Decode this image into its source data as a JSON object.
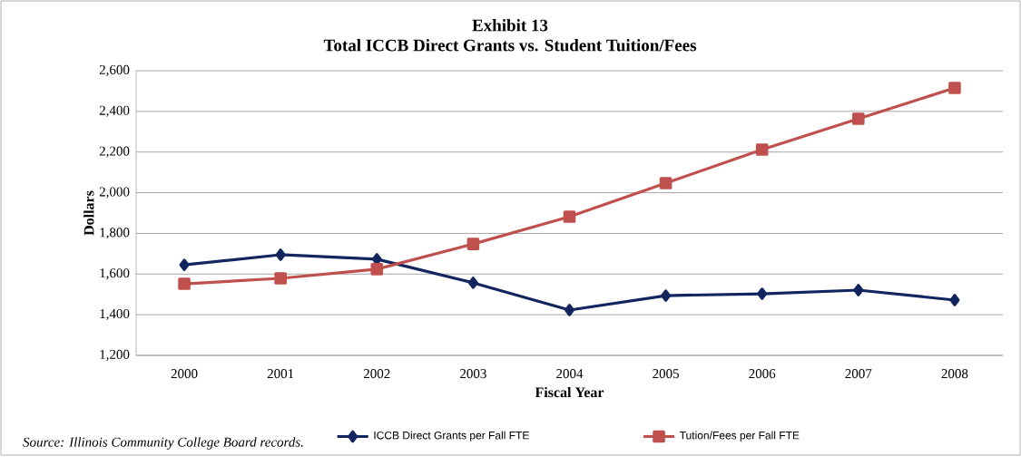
{
  "chart_data": {
    "type": "line",
    "title": "Exhibit 13",
    "subtitle": "Total ICCB Direct Grants vs. Student Tuition/Fees",
    "xlabel": "Fiscal Year",
    "ylabel": "Dollars",
    "categories": [
      "2000",
      "2001",
      "2002",
      "2003",
      "2004",
      "2005",
      "2006",
      "2007",
      "2008"
    ],
    "series": [
      {
        "name": "ICCB Direct Grants per Fall FTE",
        "color": "#12255f",
        "marker": "diamond",
        "values": [
          1645,
          1695,
          1673,
          1557,
          1423,
          1494,
          1503,
          1521,
          1472
        ]
      },
      {
        "name": "Tution/Fees per Fall FTE",
        "color": "#c0504d",
        "marker": "square",
        "values": [
          1552,
          1579,
          1624,
          1748,
          1882,
          2047,
          2212,
          2364,
          2515
        ]
      }
    ],
    "ylim": [
      1200,
      2600
    ],
    "yticks": [
      {
        "value": 1200,
        "label": "1,200"
      },
      {
        "value": 1400,
        "label": "1,400"
      },
      {
        "value": 1600,
        "label": "1,600"
      },
      {
        "value": 1800,
        "label": "1,800"
      },
      {
        "value": 2000,
        "label": "2,000"
      },
      {
        "value": 2200,
        "label": "2,200"
      },
      {
        "value": 2400,
        "label": "2,400"
      },
      {
        "value": 2600,
        "label": "2,600"
      }
    ],
    "grid": "y",
    "legend": "bottom",
    "line_style": "solid",
    "annotations": [
      "Source:  Illinois Community College Board records."
    ]
  }
}
